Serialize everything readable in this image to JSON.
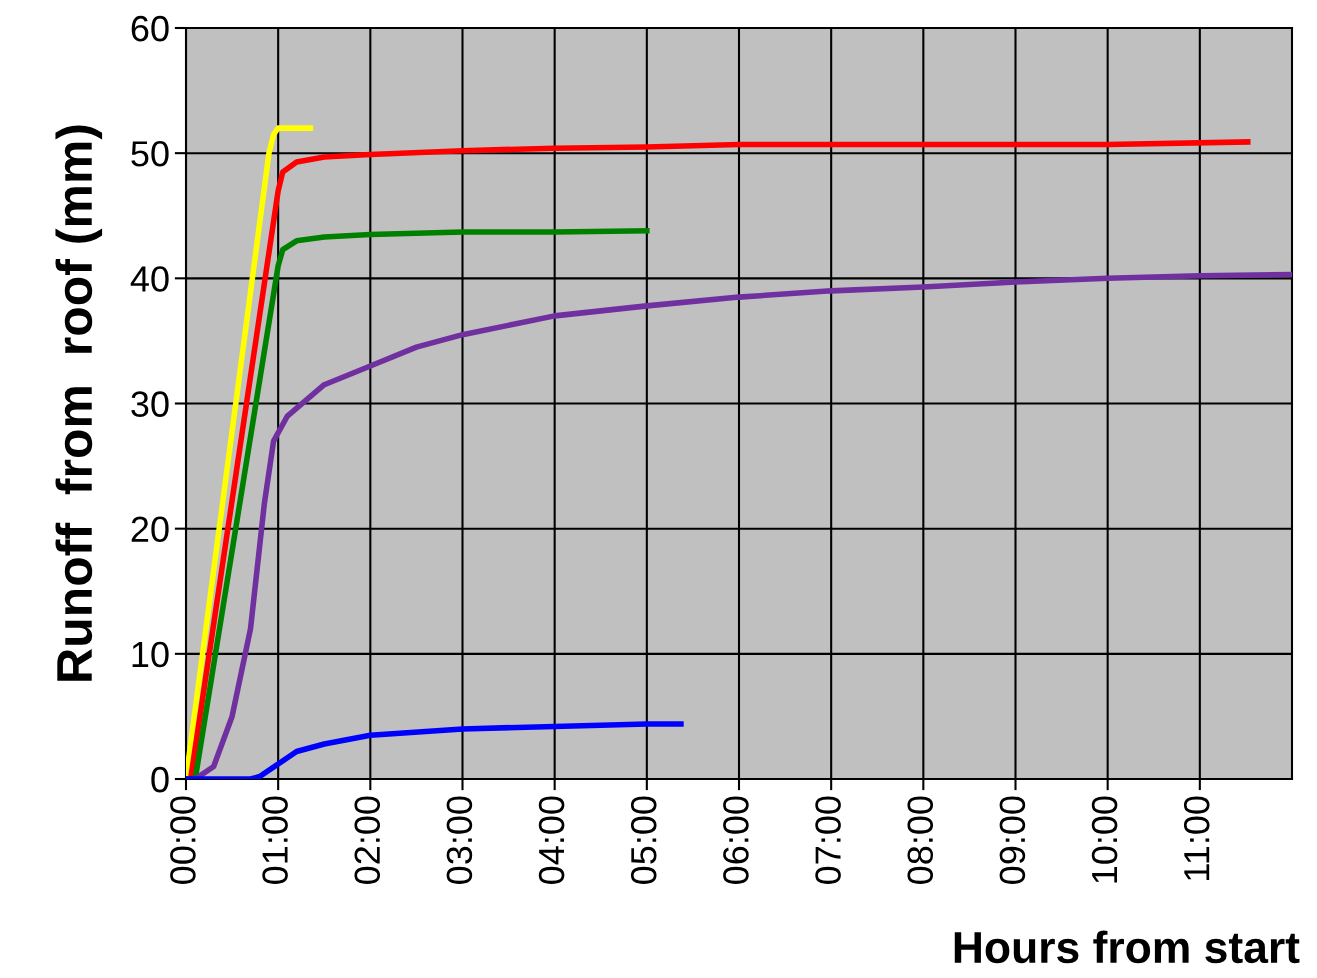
{
  "chart_data": {
    "type": "line",
    "xlabel": "Hours from start",
    "ylabel": "Runoff  from  roof (mm)",
    "xlim": [
      0,
      12
    ],
    "ylim": [
      0,
      60
    ],
    "xticks": [
      {
        "value": 0,
        "label": "00:00"
      },
      {
        "value": 1,
        "label": "01:00"
      },
      {
        "value": 2,
        "label": "02:00"
      },
      {
        "value": 3,
        "label": "03:00"
      },
      {
        "value": 4,
        "label": "04:00"
      },
      {
        "value": 5,
        "label": "05:00"
      },
      {
        "value": 6,
        "label": "06:00"
      },
      {
        "value": 7,
        "label": "07:00"
      },
      {
        "value": 8,
        "label": "08:00"
      },
      {
        "value": 9,
        "label": "09:00"
      },
      {
        "value": 10,
        "label": "10:00"
      },
      {
        "value": 11,
        "label": "11:00"
      }
    ],
    "yticks": [
      0,
      10,
      20,
      30,
      40,
      50,
      60
    ],
    "grid": true,
    "marker": "none",
    "line_style": "solid",
    "series": [
      {
        "color": "#ffff00",
        "x": [
          0,
          0.9,
          0.95,
          1.0,
          1.35
        ],
        "values": [
          0,
          50,
          51.5,
          52,
          52
        ]
      },
      {
        "color": "#ff0000",
        "x": [
          0,
          0.05,
          1.0,
          1.05,
          1.2,
          1.5,
          2,
          3,
          4,
          5,
          6,
          8,
          10,
          11.52
        ],
        "values": [
          0,
          0,
          47,
          48.5,
          49.3,
          49.7,
          49.9,
          50.2,
          50.4,
          50.5,
          50.7,
          50.7,
          50.7,
          50.9
        ]
      },
      {
        "color": "#008000",
        "x": [
          0,
          0.1,
          1.0,
          1.05,
          1.2,
          1.5,
          2,
          3,
          4,
          5
        ],
        "values": [
          0,
          0,
          41,
          42.3,
          43,
          43.3,
          43.5,
          43.7,
          43.7,
          43.8
        ]
      },
      {
        "color": "#7030a0",
        "x": [
          0.1,
          0.3,
          0.5,
          0.7,
          0.85,
          0.95,
          1.1,
          1.5,
          2,
          2.5,
          3,
          4,
          5,
          6,
          7,
          8,
          9,
          10,
          11,
          12
        ],
        "values": [
          0,
          1,
          5,
          12,
          22,
          27,
          29,
          31.5,
          33,
          34.5,
          35.5,
          37,
          37.8,
          38.5,
          39,
          39.3,
          39.7,
          40,
          40.2,
          40.3
        ]
      },
      {
        "color": "#0000ff",
        "x": [
          0,
          0.7,
          0.8,
          1,
          1.2,
          1.5,
          2,
          3,
          4,
          5,
          5.37
        ],
        "values": [
          0,
          0,
          0.2,
          1.2,
          2.2,
          2.8,
          3.5,
          4,
          4.2,
          4.4,
          4.4
        ]
      }
    ]
  }
}
